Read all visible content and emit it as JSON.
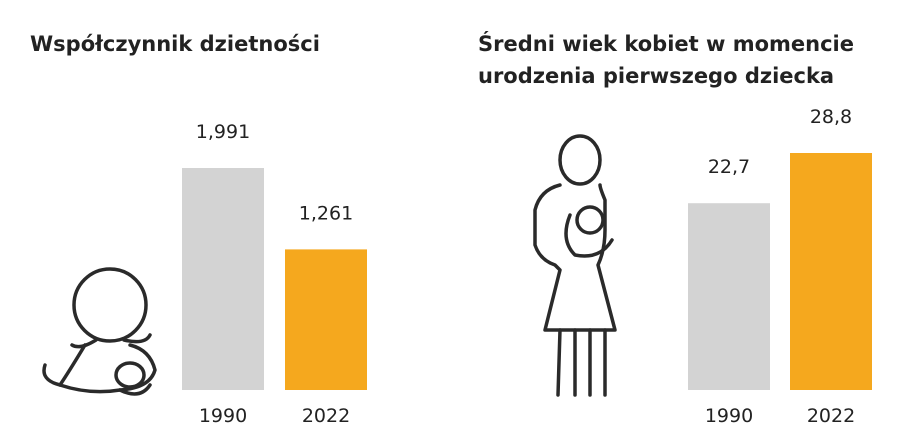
{
  "chart_data": [
    {
      "type": "bar",
      "title": "Współczynnik dzietności",
      "categories": [
        "1990",
        "2022"
      ],
      "values": [
        1.991,
        1.261
      ],
      "value_labels": [
        "1,991",
        "1,261"
      ],
      "colors": [
        "#d3d3d3",
        "#f5a81e"
      ]
    },
    {
      "type": "bar",
      "title": "Średni wiek kobiet w momencie urodzenia pierwszego dziecka",
      "categories": [
        "1990",
        "2022"
      ],
      "values": [
        22.7,
        28.8
      ],
      "value_labels": [
        "22,7",
        "28,8"
      ],
      "colors": [
        "#d3d3d3",
        "#f5a81e"
      ]
    }
  ]
}
